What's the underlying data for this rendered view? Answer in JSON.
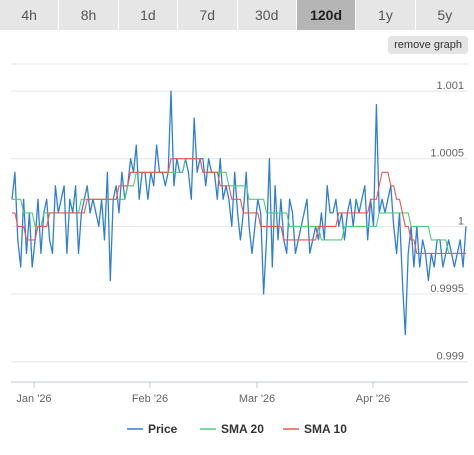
{
  "tabs": [
    {
      "label": "4h",
      "active": false
    },
    {
      "label": "8h",
      "active": false
    },
    {
      "label": "1d",
      "active": false
    },
    {
      "label": "7d",
      "active": false
    },
    {
      "label": "30d",
      "active": false
    },
    {
      "label": "120d",
      "active": true
    },
    {
      "label": "1y",
      "active": false
    },
    {
      "label": "5y",
      "active": false
    }
  ],
  "remove_graph_label": "remove graph",
  "chart_data": {
    "type": "line",
    "x_ticks": [
      "Jan '26",
      "Feb '26",
      "Mar '26",
      "Apr '26"
    ],
    "y_ticks": [
      "0.999",
      "0.9995",
      "1",
      "1.0005",
      "1.001"
    ],
    "ylim": [
      0.99885,
      1.0012
    ],
    "grid": "horizontal",
    "legend_position": "bottom",
    "series": [
      {
        "name": "Price",
        "color": "#2f7ed8",
        "values": [
          1.0002,
          1.0004,
          0.9999,
          0.9997,
          1.0002,
          0.9998,
          1.0001,
          0.9997,
          0.9999,
          1.0002,
          0.9998,
          1.0001,
          1.0002,
          0.9999,
          0.9998,
          1.0003,
          1.0001,
          1.0002,
          1.0003,
          0.9998,
          1.0002,
          1.0001,
          1.0003,
          0.9998,
          1.0001,
          1.0002,
          1.0003,
          1.0001,
          1.0002,
          1.0001,
          1.0,
          1.0002,
          0.9999,
          1.0004,
          0.9996,
          1.0002,
          1.0003,
          1.0001,
          1.0004,
          1.0002,
          1.0003,
          1.0005,
          1.0004,
          1.0006,
          1.0002,
          1.0004,
          1.0004,
          1.0002,
          1.0004,
          1.0003,
          1.0006,
          1.0004,
          1.0004,
          1.0003,
          1.0004,
          1.001,
          1.0003,
          1.0005,
          1.0004,
          1.0004,
          1.0005,
          1.0004,
          1.0002,
          1.0008,
          1.0004,
          1.0005,
          1.0005,
          1.0003,
          1.0005,
          1.0004,
          1.0004,
          1.0002,
          1.0005,
          1.0002,
          1.0003,
          1.0002,
          1.0,
          1.0004,
          1.0001,
          0.9999,
          1.0001,
          1.0004,
          1.0,
          0.9998,
          1.0,
          1.0002,
          1.0001,
          0.9995,
          0.9999,
          1.0005,
          0.9997,
          1.0003,
          0.9999,
          1.0002,
          0.9999,
          0.9998,
          1.0002,
          1.0001,
          0.9998,
          0.9999,
          1.0,
          1.0001,
          1.0002,
          0.9998,
          0.9999,
          1.0,
          0.9999,
          1.0001,
          0.9999,
          1.0003,
          1.0001,
          1.0001,
          1.0002,
          1.0,
          1.0001,
          0.9999,
          1.0001,
          1.0002,
          1.0,
          1.0002,
          1.0001,
          1.0002,
          1.0003,
          0.9999,
          1.0002,
          1.0,
          1.0009,
          1.0001,
          1.0002,
          1.0001,
          1.0002,
          1.0003,
          1.0,
          0.9998,
          1.0001,
          0.9996,
          0.9992,
          0.9998,
          1.0,
          0.9997,
          1.0,
          0.9997,
          0.9999,
          0.9998,
          0.9996,
          0.9998,
          0.9997,
          0.9999,
          0.9999,
          0.9997,
          0.9998,
          0.9999,
          0.9998,
          0.9997,
          0.9998,
          0.9999,
          0.9997,
          1.0
        ]
      },
      {
        "name": "SMA 20",
        "color": "#4dce7a",
        "values": [
          1.0002,
          1.0002,
          1.0002,
          1.0002,
          1.0001,
          1.0001,
          1.0001,
          1.0001,
          1.0,
          1.0,
          1.0,
          1.0001,
          1.0001,
          1.0001,
          1.0001,
          1.0001,
          1.0001,
          1.0001,
          1.0001,
          1.0001,
          1.0001,
          1.0001,
          1.0001,
          1.0001,
          1.0002,
          1.0002,
          1.0002,
          1.0002,
          1.0002,
          1.0002,
          1.0002,
          1.0002,
          1.0002,
          1.0002,
          1.0002,
          1.0002,
          1.0002,
          1.0002,
          1.0002,
          1.0002,
          1.0003,
          1.0003,
          1.0003,
          1.0004,
          1.0004,
          1.0004,
          1.0004,
          1.0004,
          1.0004,
          1.0004,
          1.0004,
          1.0004,
          1.0004,
          1.0004,
          1.0004,
          1.0004,
          1.0004,
          1.0004,
          1.0004,
          1.0004,
          1.0005,
          1.0005,
          1.0005,
          1.0005,
          1.0005,
          1.0005,
          1.0004,
          1.0004,
          1.0004,
          1.0004,
          1.0004,
          1.0004,
          1.0004,
          1.0004,
          1.0004,
          1.0003,
          1.0003,
          1.0003,
          1.0003,
          1.0003,
          1.0003,
          1.0003,
          1.0002,
          1.0002,
          1.0002,
          1.0002,
          1.0002,
          1.0002,
          1.0001,
          1.0001,
          1.0001,
          1.0001,
          1.0001,
          1.0001,
          1.0001,
          1.0001,
          1.0,
          1.0,
          1.0,
          1.0,
          1.0,
          1.0,
          1.0,
          1.0,
          1.0,
          1.0,
          1.0,
          0.9999,
          0.9999,
          0.9999,
          0.9999,
          0.9999,
          0.9999,
          0.9999,
          0.9999,
          1.0,
          1.0,
          1.0,
          1.0,
          1.0,
          1.0,
          1.0,
          1.0,
          1.0,
          1.0,
          1.0,
          1.0,
          1.0001,
          1.0001,
          1.0001,
          1.0001,
          1.0001,
          1.0001,
          1.0001,
          1.0001,
          1.0001,
          1.0001,
          1.0001,
          1.0,
          1.0,
          1.0,
          1.0,
          1.0,
          1.0,
          1.0,
          0.9999,
          0.9999,
          0.9999,
          0.9999,
          0.9999,
          0.9999,
          0.9998,
          0.9998,
          0.9998,
          0.9998,
          0.9998,
          0.9998,
          0.9998
        ]
      },
      {
        "name": "SMA 10",
        "color": "#f0554f",
        "values": [
          1.0001,
          1.0001,
          1.0,
          1.0,
          1.0,
          0.9999,
          0.9999,
          0.9999,
          0.9999,
          1.0,
          1.0,
          1.0,
          1.0,
          1.0001,
          1.0001,
          1.0001,
          1.0001,
          1.0001,
          1.0001,
          1.0001,
          1.0001,
          1.0001,
          1.0001,
          1.0001,
          1.0001,
          1.0001,
          1.0002,
          1.0002,
          1.0002,
          1.0002,
          1.0002,
          1.0002,
          1.0002,
          1.0002,
          1.0002,
          1.0002,
          1.0002,
          1.0003,
          1.0003,
          1.0003,
          1.0003,
          1.0004,
          1.0004,
          1.0004,
          1.0004,
          1.0004,
          1.0004,
          1.0004,
          1.0004,
          1.0004,
          1.0004,
          1.0004,
          1.0004,
          1.0004,
          1.0004,
          1.0005,
          1.0005,
          1.0005,
          1.0005,
          1.0005,
          1.0005,
          1.0005,
          1.0005,
          1.0005,
          1.0005,
          1.0005,
          1.0004,
          1.0004,
          1.0004,
          1.0004,
          1.0004,
          1.0004,
          1.0003,
          1.0003,
          1.0003,
          1.0003,
          1.0002,
          1.0002,
          1.0002,
          1.0002,
          1.0001,
          1.0001,
          1.0001,
          1.0001,
          1.0001,
          1.0001,
          1.0,
          1.0,
          1.0,
          1.0,
          1.0,
          1.0,
          1.0,
          1.0,
          0.9999,
          0.9999,
          0.9999,
          0.9999,
          0.9999,
          0.9999,
          0.9999,
          0.9999,
          0.9999,
          0.9999,
          0.9999,
          0.9999,
          1.0,
          1.0,
          1.0,
          1.0,
          1.0,
          1.0,
          1.0,
          1.0001,
          1.0001,
          1.0001,
          1.0001,
          1.0001,
          1.0001,
          1.0001,
          1.0001,
          1.0001,
          1.0001,
          1.0001,
          1.0002,
          1.0002,
          1.0002,
          1.0003,
          1.0004,
          1.0004,
          1.0004,
          1.0003,
          1.0003,
          1.0002,
          1.0002,
          1.0001,
          1.0,
          1.0,
          0.9999,
          0.9999,
          0.9998,
          0.9998,
          0.9998,
          0.9998,
          0.9998,
          0.9998,
          0.9998,
          0.9998,
          0.9998,
          0.9998,
          0.9998,
          0.9998,
          0.9998,
          0.9998,
          0.9998,
          0.9998,
          0.9998,
          0.9998
        ]
      }
    ]
  }
}
